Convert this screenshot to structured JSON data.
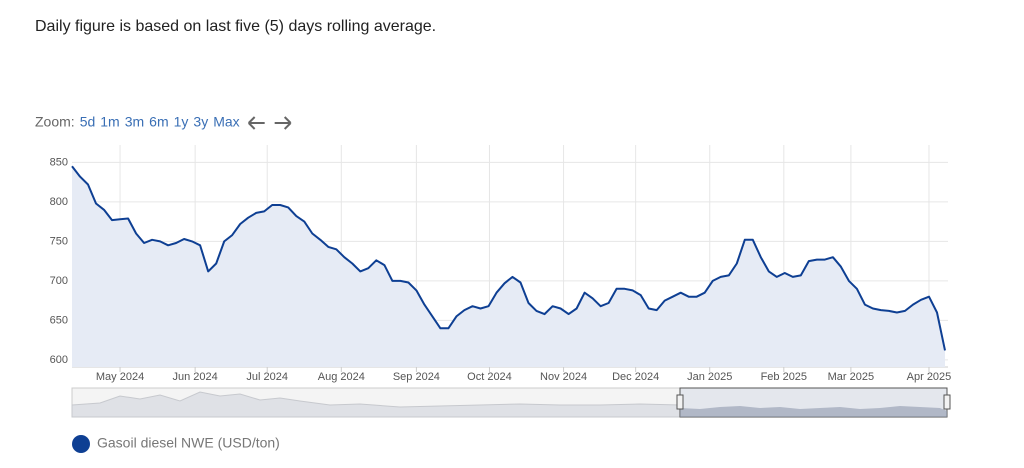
{
  "note": "Daily figure is based on last five (5) days rolling average.",
  "zoom": {
    "label": "Zoom:",
    "buttons": [
      "5d",
      "1m",
      "3m",
      "6m",
      "1y",
      "3y",
      "Max"
    ]
  },
  "chart_data": {
    "type": "area",
    "series": [
      {
        "name": "Gasoil diesel NWE (USD/ton)",
        "color": "#0e3f93",
        "fill": "#e6ebf5",
        "values": [
          845,
          832,
          822,
          798,
          790,
          777,
          778,
          779,
          760,
          748,
          752,
          750,
          745,
          748,
          753,
          750,
          745,
          712,
          722,
          750,
          758,
          772,
          780,
          786,
          788,
          796,
          796,
          793,
          782,
          775,
          760,
          752,
          743,
          740,
          730,
          722,
          712,
          716,
          726,
          720,
          700,
          700,
          698,
          688,
          670,
          655,
          640,
          640,
          655,
          663,
          668,
          665,
          668,
          685,
          697,
          705,
          698,
          672,
          662,
          658,
          668,
          665,
          658,
          665,
          685,
          678,
          668,
          672,
          690,
          690,
          688,
          682,
          665,
          663,
          675,
          680,
          685,
          680,
          680,
          685,
          700,
          705,
          707,
          722,
          752,
          752,
          730,
          712,
          705,
          710,
          705,
          707,
          725,
          727,
          727,
          730,
          718,
          700,
          690,
          670,
          665,
          663,
          662,
          660,
          662,
          670,
          676,
          680,
          660,
          612
        ]
      }
    ],
    "xlim": [
      0,
      109
    ],
    "xticks": [
      {
        "value": 6,
        "label": "May 2024"
      },
      {
        "value": 15.375,
        "label": "Jun 2024"
      },
      {
        "value": 24.375,
        "label": "Jul 2024"
      },
      {
        "value": 33.625,
        "label": "Aug 2024"
      },
      {
        "value": 43,
        "label": "Sep 2024"
      },
      {
        "value": 52.125,
        "label": "Oct 2024"
      },
      {
        "value": 61.375,
        "label": "Nov 2024"
      },
      {
        "value": 70.375,
        "label": "Dec 2024"
      },
      {
        "value": 79.625,
        "label": "Jan 2025"
      },
      {
        "value": 88.875,
        "label": "Feb 2025"
      },
      {
        "value": 97.25,
        "label": "Mar 2025"
      },
      {
        "value": 107,
        "label": "Apr 2025"
      }
    ],
    "ylim": [
      591,
      872
    ],
    "yticks": [
      600,
      650,
      700,
      750,
      800,
      850
    ],
    "grid": true
  }
}
